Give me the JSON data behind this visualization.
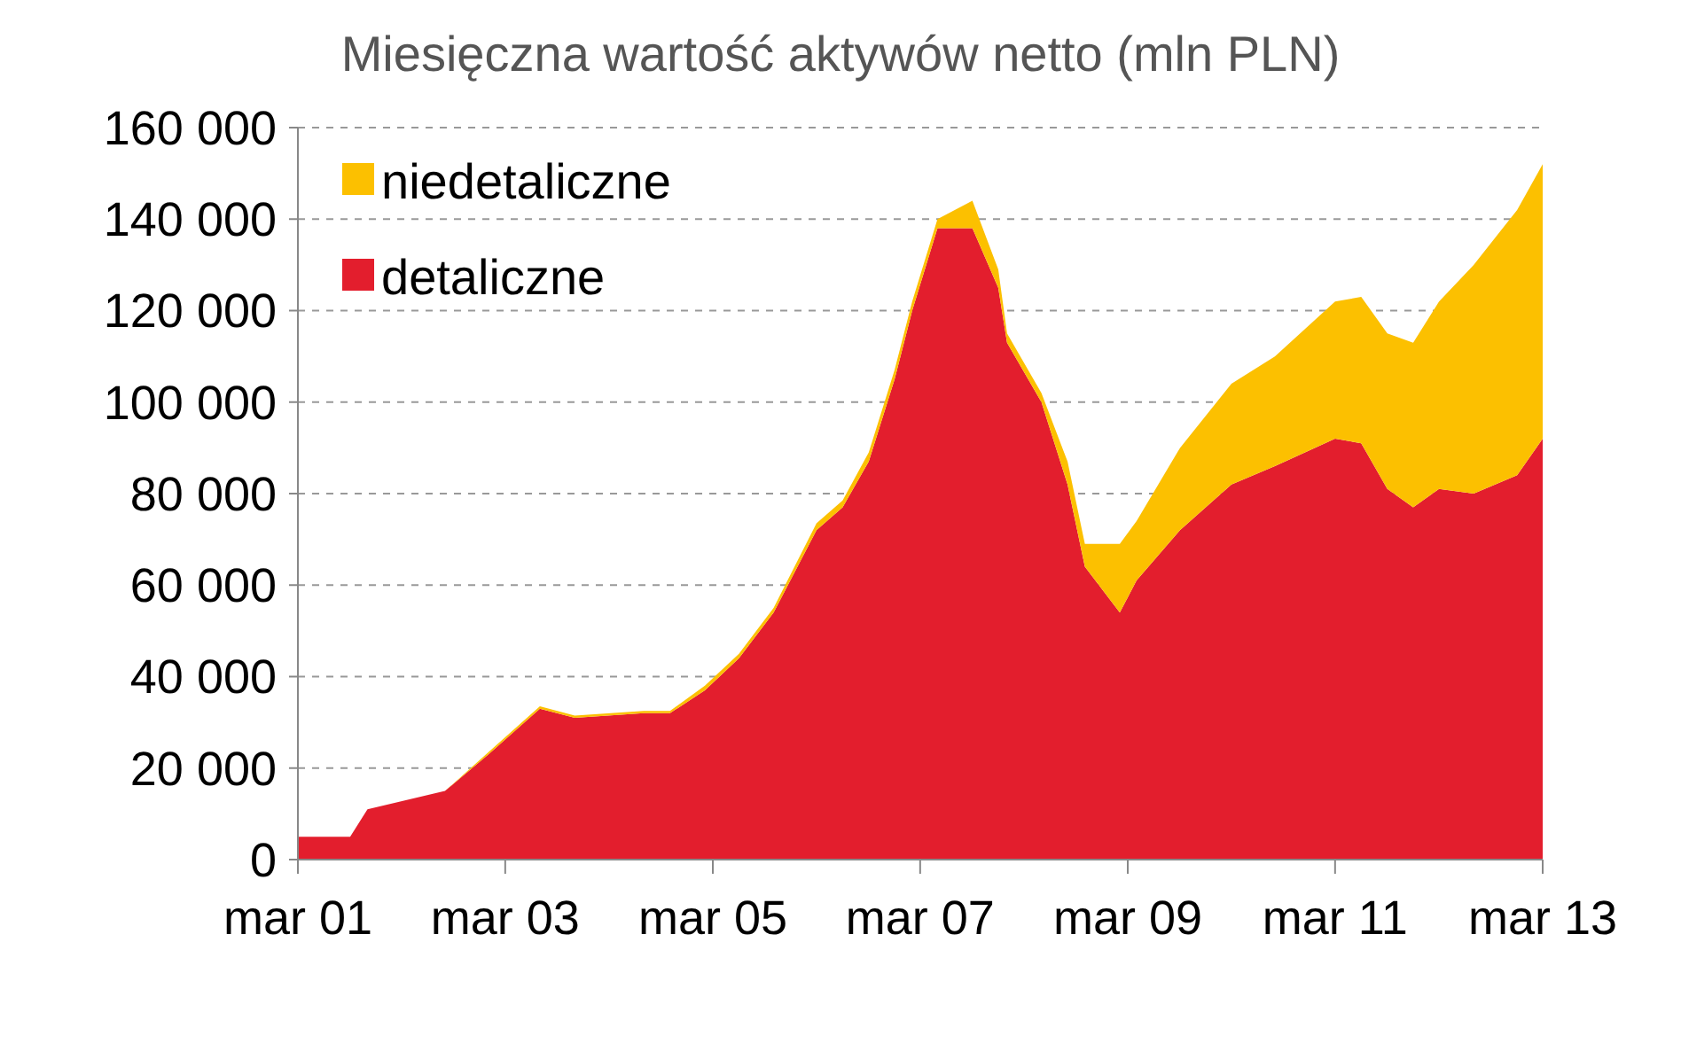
{
  "chart_data": {
    "type": "area",
    "stacked": true,
    "title": "Miesięczna wartość aktywów netto (mln PLN)",
    "x": [
      "2001-03",
      "2001-09",
      "2001-11",
      "2002-08",
      "2003-01",
      "2003-07",
      "2003-11",
      "2004-07",
      "2004-10",
      "2005-02",
      "2005-06",
      "2005-10",
      "2006-03",
      "2006-06",
      "2006-09",
      "2006-12",
      "2007-02",
      "2007-05",
      "2007-09",
      "2007-12",
      "2008-01",
      "2008-05",
      "2008-08",
      "2008-10",
      "2009-02",
      "2009-04",
      "2009-09",
      "2010-03",
      "2010-08",
      "2011-03",
      "2011-06",
      "2011-09",
      "2011-12",
      "2012-03",
      "2012-07",
      "2012-12",
      "2013-03"
    ],
    "series": [
      {
        "name": "detaliczne",
        "color": "#e31e2d",
        "values": [
          5000,
          5000,
          11000,
          15000,
          23000,
          33000,
          31000,
          32000,
          32000,
          37000,
          44000,
          54000,
          72000,
          77000,
          87000,
          105000,
          120000,
          138000,
          138000,
          125000,
          113000,
          100000,
          82000,
          64000,
          54000,
          61000,
          72000,
          82000,
          86000,
          92000,
          91000,
          81000,
          77000,
          81000,
          80000,
          84000,
          92000
        ]
      },
      {
        "name": "niedetaliczne",
        "color": "#fcc000",
        "values": [
          0,
          0,
          0,
          0,
          500,
          500,
          500,
          500,
          500,
          1000,
          1000,
          1000,
          1500,
          1500,
          2000,
          2000,
          2000,
          2000,
          6000,
          4000,
          2000,
          2000,
          5000,
          5000,
          15000,
          13000,
          18000,
          22000,
          24000,
          30000,
          32000,
          34000,
          36000,
          41000,
          50000,
          58000,
          60000
        ]
      }
    ],
    "xlim": [
      "2001-03",
      "2013-03"
    ],
    "xticks": [
      {
        "value": "2001-03",
        "label": "mar 01"
      },
      {
        "value": "2003-03",
        "label": "mar 03"
      },
      {
        "value": "2005-03",
        "label": "mar 05"
      },
      {
        "value": "2007-03",
        "label": "mar 07"
      },
      {
        "value": "2009-03",
        "label": "mar 09"
      },
      {
        "value": "2011-03",
        "label": "mar 11"
      },
      {
        "value": "2013-03",
        "label": "mar 13"
      }
    ],
    "ylim": [
      0,
      160000
    ],
    "yticks": [
      {
        "value": 0,
        "label": "0"
      },
      {
        "value": 20000,
        "label": "20 000"
      },
      {
        "value": 40000,
        "label": "40 000"
      },
      {
        "value": 60000,
        "label": "60 000"
      },
      {
        "value": 80000,
        "label": "80 000"
      },
      {
        "value": 100000,
        "label": "100 000"
      },
      {
        "value": 120000,
        "label": "120 000"
      },
      {
        "value": 140000,
        "label": "140 000"
      },
      {
        "value": 160000,
        "label": "160 000"
      }
    ],
    "grid": "y",
    "legend": "top left"
  }
}
